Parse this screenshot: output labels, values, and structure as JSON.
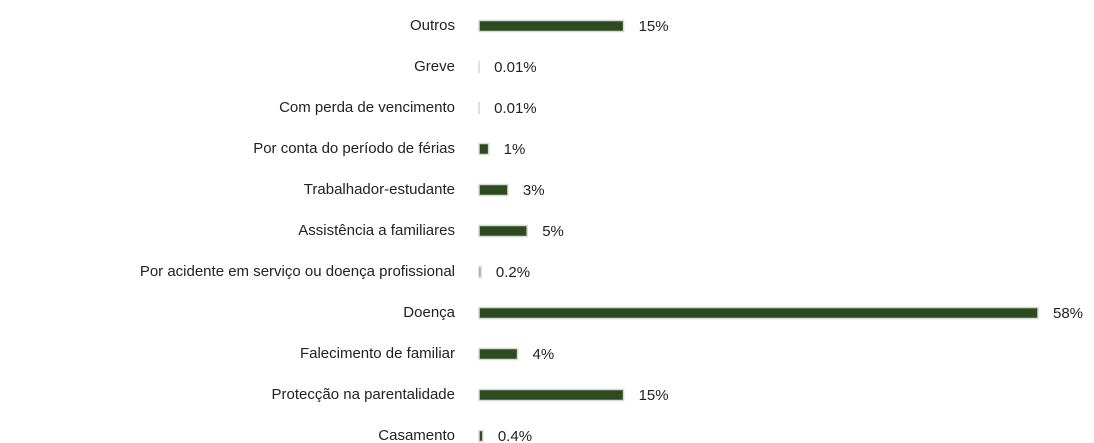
{
  "chart_data": {
    "type": "hbar",
    "categories": [
      "Outros",
      "Greve",
      "Com perda de vencimento",
      "Por conta do período de férias",
      "Trabalhador-estudante",
      "Assistência a familiares",
      "Por acidente em serviço ou doença profissional",
      "Doença",
      "Falecimento de familiar",
      "Protecção na parentalidade",
      "Casamento"
    ],
    "values": [
      15,
      0.01,
      0.01,
      1,
      3,
      5,
      0.2,
      58,
      4,
      15,
      0.4
    ],
    "value_labels": [
      "15%",
      "0.01%",
      "0.01%",
      "1%",
      "3%",
      "5%",
      "0.2%",
      "58%",
      "4%",
      "15%",
      "0.4%"
    ],
    "color": "#2e4a1f"
  }
}
